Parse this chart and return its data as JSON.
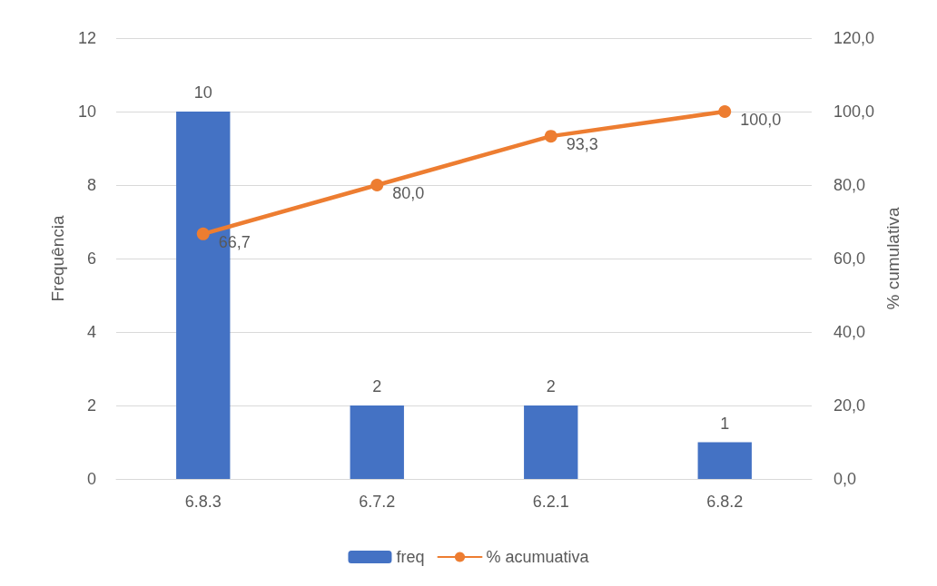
{
  "chart_data": {
    "type": "bar",
    "categories": [
      "6.8.3",
      "6.7.2",
      "6.2.1",
      "6.8.2"
    ],
    "ylabel": "Frequência",
    "y2label": "% cumulativa",
    "series": [
      {
        "name": "freq",
        "color": "#4472c4",
        "values": [
          10,
          2,
          2,
          1
        ],
        "value_labels": [
          "10",
          "2",
          "2",
          "1"
        ]
      },
      {
        "name": "% acumuativa",
        "type": "line",
        "axis": "y2",
        "color": "#ed7d31",
        "marker": "circle",
        "values": [
          66.7,
          80.0,
          93.3,
          100.0
        ],
        "value_labels": [
          "66,7",
          "80,0",
          "93,3",
          "100,0"
        ]
      }
    ],
    "ylim": [
      0,
      12
    ],
    "yticks": [
      0,
      2,
      4,
      6,
      8,
      10,
      12
    ],
    "y2lim": [
      0,
      120
    ],
    "y2ticks": [
      {
        "value": 0,
        "label": "0,0"
      },
      {
        "value": 20,
        "label": "20,0"
      },
      {
        "value": 40,
        "label": "40,0"
      },
      {
        "value": 60,
        "label": "60,0"
      },
      {
        "value": 80,
        "label": "80,0"
      },
      {
        "value": 100,
        "label": "100,0"
      },
      {
        "value": 120,
        "label": "120,0"
      }
    ],
    "grid": "y",
    "legend": "bottom"
  }
}
